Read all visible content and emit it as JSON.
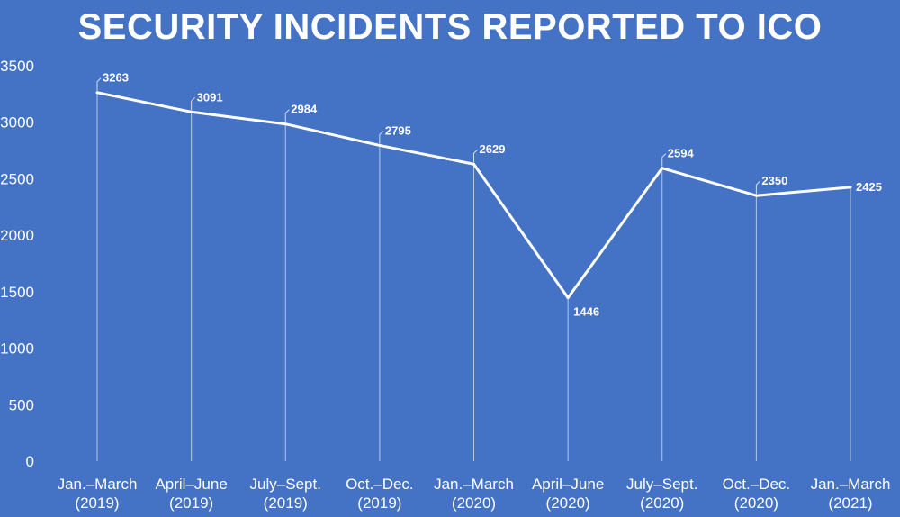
{
  "chart_data": {
    "type": "line",
    "title": "SECURITY INCIDENTS REPORTED TO ICO",
    "categories": [
      [
        "Jan.–March",
        "(2019)"
      ],
      [
        "April–June",
        "(2019)"
      ],
      [
        "July–Sept.",
        "(2019)"
      ],
      [
        "Oct.–Dec.",
        "(2019)"
      ],
      [
        "Jan.–March",
        "(2020)"
      ],
      [
        "April–June",
        "(2020)"
      ],
      [
        "July–Sept.",
        "(2020)"
      ],
      [
        "Oct.–Dec.",
        "(2020)"
      ],
      [
        "Jan.–March",
        "(2021)"
      ]
    ],
    "values": [
      3263,
      3091,
      2984,
      2795,
      2629,
      1446,
      2594,
      2350,
      2425
    ],
    "ylim": [
      0,
      3500
    ],
    "yticks": [
      0,
      500,
      1000,
      1500,
      2000,
      2500,
      3000,
      3500
    ],
    "grid": false,
    "drop_lines": true,
    "legend": "none",
    "colors": {
      "background": "#4472c4",
      "line": "#ffffff",
      "text": "#ffffff"
    }
  }
}
